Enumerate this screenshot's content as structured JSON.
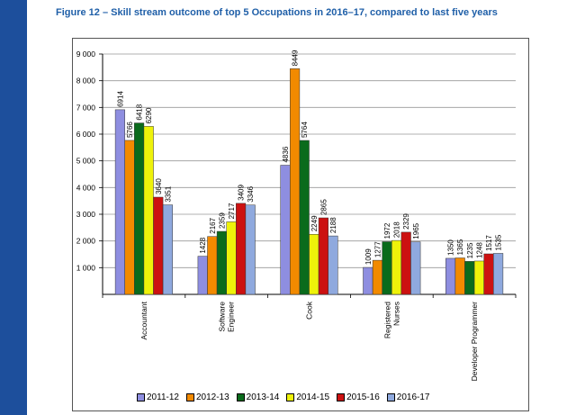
{
  "figure": {
    "title": "Figure 12 – Skill stream outcome of top 5 Occupations in 2016–17, compared to last five years"
  },
  "colors": {
    "sidebar": "#1d4f9c",
    "title": "#1f5fa8"
  },
  "chart_data": {
    "type": "bar",
    "title": "Figure 12 – Skill stream outcome of top 5 Occupations in 2016–17, compared to last five years",
    "xlabel": "",
    "ylabel": "",
    "ylim": [
      0,
      9000
    ],
    "yticks": [
      1000,
      2000,
      3000,
      4000,
      5000,
      6000,
      7000,
      8000,
      9000
    ],
    "ytick_labels": [
      "1 000",
      "2 000",
      "3 000",
      "4 000",
      "5 000",
      "6 000",
      "7 000",
      "8 000",
      "9 000"
    ],
    "grid": true,
    "legend_position": "bottom",
    "categories": [
      [
        "Accountant"
      ],
      [
        "Software",
        "Engineer"
      ],
      [
        "Cook"
      ],
      [
        "Registered",
        "Nurses"
      ],
      [
        "Developer Programmer"
      ]
    ],
    "series": [
      {
        "name": "2011-12",
        "color": "#8e8ee0",
        "values": [
          6914,
          1428,
          4836,
          1009,
          1350
        ]
      },
      {
        "name": "2012-13",
        "color": "#f28a00",
        "values": [
          5766,
          2167,
          8449,
          1277,
          1365
        ]
      },
      {
        "name": "2013-14",
        "color": "#0a6b1c",
        "values": [
          6418,
          2359,
          5764,
          1972,
          1235
        ]
      },
      {
        "name": "2014-15",
        "color": "#eef20a",
        "values": [
          6290,
          2717,
          2249,
          2018,
          1248
        ]
      },
      {
        "name": "2015-16",
        "color": "#cc1111",
        "values": [
          3640,
          3409,
          2865,
          2329,
          1517
        ]
      },
      {
        "name": "2016-17",
        "color": "#8fa9de",
        "values": [
          3351,
          3346,
          2188,
          1965,
          1535
        ]
      }
    ]
  }
}
